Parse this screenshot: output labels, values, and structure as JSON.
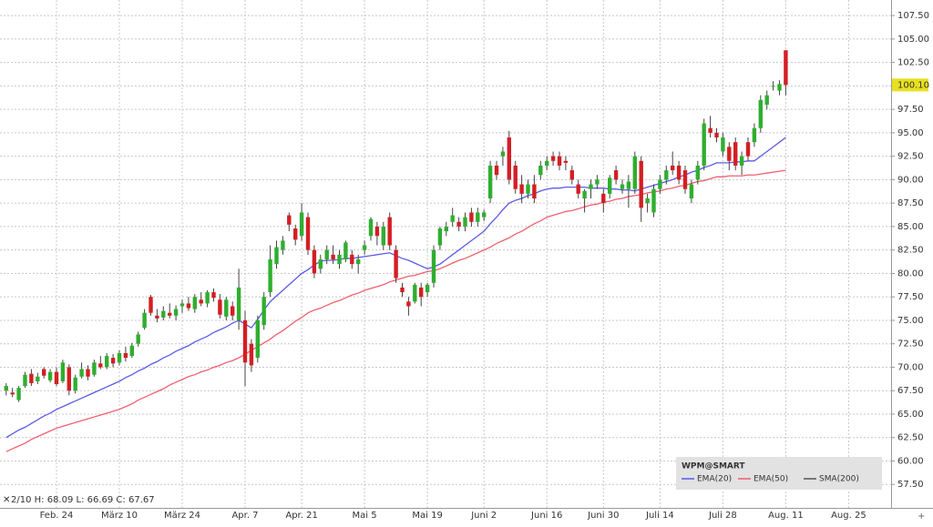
{
  "chart_data": {
    "type": "candlestick",
    "info": "2/10 H: 68.09 L: 66.69 C: 67.67",
    "legend_title": "WPM@SMART",
    "up_color": "#2fae2f",
    "down_color": "#d41e24",
    "categories": [
      null,
      null,
      null,
      null,
      null,
      null,
      null,
      null,
      "Feb. 24",
      null,
      null,
      null,
      null,
      null,
      null,
      null,
      null,
      null,
      "März 10",
      null,
      null,
      null,
      null,
      null,
      null,
      null,
      null,
      null,
      "März 24",
      null,
      null,
      null,
      null,
      null,
      null,
      null,
      null,
      null,
      "Apr. 7",
      null,
      null,
      null,
      null,
      null,
      null,
      null,
      null,
      "Apr. 21",
      null,
      null,
      null,
      null,
      null,
      null,
      null,
      null,
      null,
      "Mai 5",
      null,
      null,
      null,
      null,
      null,
      null,
      null,
      null,
      null,
      "Mai 19",
      null,
      null,
      null,
      null,
      null,
      null,
      null,
      null,
      "Juni 2",
      null,
      null,
      null,
      null,
      null,
      null,
      null,
      null,
      null,
      "Juni 16",
      null,
      null,
      null,
      null,
      null,
      null,
      null,
      null,
      "Juni 30",
      null,
      null,
      null,
      null,
      null,
      null,
      null,
      null,
      "Juli 14",
      null,
      null,
      null,
      null,
      null,
      null,
      null,
      null,
      null,
      "Juli 28",
      null,
      null,
      null,
      null,
      null,
      null,
      null,
      null,
      null,
      "Aug. 11",
      null,
      null,
      null,
      null,
      null,
      null,
      null,
      null,
      null,
      "Aug. 25"
    ],
    "ohlc": [
      [
        67.5,
        68.3,
        67.0,
        68.0
      ],
      [
        67.3,
        67.8,
        66.8,
        67.1
      ],
      [
        66.5,
        68.0,
        66.3,
        67.8
      ],
      [
        68.0,
        69.5,
        67.8,
        69.2
      ],
      [
        69.3,
        69.8,
        68.0,
        68.3
      ],
      [
        68.5,
        69.4,
        68.2,
        69.0
      ],
      [
        69.8,
        70.0,
        68.8,
        69.1
      ],
      [
        68.6,
        69.8,
        68.4,
        69.5
      ],
      [
        69.5,
        70.0,
        68.0,
        68.2
      ],
      [
        68.5,
        70.8,
        68.3,
        70.5
      ],
      [
        70.0,
        70.3,
        67.0,
        67.5
      ],
      [
        67.5,
        69.2,
        67.2,
        68.9
      ],
      [
        69.0,
        70.5,
        68.8,
        69.8
      ],
      [
        69.8,
        70.2,
        68.6,
        69.0
      ],
      [
        69.2,
        70.8,
        69.0,
        70.5
      ],
      [
        70.4,
        71.2,
        69.8,
        70.0
      ],
      [
        70.0,
        71.5,
        69.8,
        71.2
      ],
      [
        71.0,
        71.4,
        70.0,
        70.4
      ],
      [
        70.5,
        71.8,
        70.2,
        71.5
      ],
      [
        71.5,
        72.2,
        70.6,
        71.0
      ],
      [
        71.2,
        72.6,
        71.0,
        72.3
      ],
      [
        72.5,
        73.8,
        72.2,
        73.5
      ],
      [
        74.2,
        76.2,
        74.0,
        75.8
      ],
      [
        77.5,
        77.7,
        75.5,
        75.8
      ],
      [
        75.5,
        76.2,
        74.8,
        75.2
      ],
      [
        75.3,
        76.5,
        75.0,
        76.0
      ],
      [
        75.8,
        76.8,
        75.2,
        75.5
      ],
      [
        75.5,
        76.6,
        75.0,
        76.2
      ],
      [
        76.5,
        77.2,
        75.8,
        76.8
      ],
      [
        76.8,
        77.5,
        76.0,
        76.3
      ],
      [
        76.2,
        77.8,
        75.8,
        77.5
      ],
      [
        77.2,
        78.0,
        76.5,
        76.8
      ],
      [
        76.8,
        78.2,
        76.4,
        78.0
      ],
      [
        78.0,
        78.4,
        77.0,
        77.4
      ],
      [
        77.2,
        77.8,
        75.2,
        75.6
      ],
      [
        75.4,
        77.5,
        75.0,
        77.2
      ],
      [
        76.5,
        77.0,
        75.0,
        75.5
      ],
      [
        75.0,
        80.5,
        74.0,
        78.5
      ],
      [
        75.0,
        76.0,
        68.0,
        70.5
      ],
      [
        72.5,
        73.0,
        69.5,
        70.2
      ],
      [
        71.0,
        75.5,
        70.5,
        75.0
      ],
      [
        74.5,
        78.0,
        74.0,
        77.5
      ],
      [
        78.0,
        83.0,
        77.5,
        81.5
      ],
      [
        81.0,
        83.5,
        80.5,
        82.8
      ],
      [
        82.5,
        84.0,
        82.0,
        83.5
      ],
      [
        86.2,
        86.5,
        84.5,
        85.2
      ],
      [
        84.8,
        85.2,
        83.0,
        83.6
      ],
      [
        84.0,
        87.5,
        83.5,
        86.5
      ],
      [
        86.0,
        86.5,
        82.0,
        82.5
      ],
      [
        82.5,
        83.0,
        79.5,
        80.0
      ],
      [
        80.5,
        82.0,
        80.0,
        81.5
      ],
      [
        81.5,
        83.0,
        81.0,
        82.5
      ],
      [
        82.0,
        83.0,
        81.0,
        81.5
      ],
      [
        81.0,
        82.5,
        80.5,
        82.0
      ],
      [
        81.5,
        83.5,
        81.2,
        83.3
      ],
      [
        82.0,
        82.5,
        80.5,
        81.0
      ],
      [
        81.0,
        82.0,
        80.0,
        81.5
      ],
      [
        82.5,
        83.5,
        82.0,
        83.0
      ],
      [
        84.0,
        86.0,
        83.5,
        85.8
      ],
      [
        85.0,
        85.5,
        83.0,
        84.0
      ],
      [
        83.0,
        85.5,
        82.5,
        85.0
      ],
      [
        86.0,
        86.5,
        82.5,
        83.0
      ],
      [
        82.5,
        83.0,
        79.0,
        79.5
      ],
      [
        78.5,
        79.0,
        77.5,
        78.0
      ],
      [
        77.0,
        77.5,
        75.5,
        76.5
      ],
      [
        77.0,
        79.0,
        76.8,
        78.8
      ],
      [
        78.5,
        79.0,
        76.5,
        77.5
      ],
      [
        78.0,
        79.0,
        77.5,
        78.8
      ],
      [
        79.0,
        83.0,
        78.5,
        82.5
      ],
      [
        83.0,
        85.0,
        82.5,
        84.8
      ],
      [
        84.5,
        85.5,
        84.0,
        85.0
      ],
      [
        85.5,
        87.0,
        85.0,
        86.2
      ],
      [
        85.5,
        86.0,
        84.5,
        85.0
      ],
      [
        85.0,
        86.5,
        84.5,
        86.0
      ],
      [
        86.5,
        87.0,
        85.0,
        85.5
      ],
      [
        85.5,
        87.0,
        85.0,
        86.5
      ],
      [
        86.0,
        86.8,
        85.6,
        86.5
      ],
      [
        88.0,
        92.0,
        87.5,
        91.5
      ],
      [
        91.5,
        92.0,
        90.0,
        90.5
      ],
      [
        92.5,
        93.5,
        91.5,
        93.0
      ],
      [
        94.5,
        95.2,
        89.5,
        90.0
      ],
      [
        91.5,
        92.0,
        88.5,
        89.0
      ],
      [
        89.5,
        90.5,
        87.5,
        88.5
      ],
      [
        88.5,
        90.0,
        88.0,
        89.5
      ],
      [
        89.5,
        90.5,
        87.5,
        88.0
      ],
      [
        90.5,
        92.0,
        90.0,
        91.5
      ],
      [
        91.5,
        92.5,
        91.0,
        92.0
      ],
      [
        92.5,
        93.0,
        91.5,
        92.0
      ],
      [
        92.5,
        93.0,
        91.0,
        91.5
      ],
      [
        92.0,
        92.5,
        91.0,
        91.8
      ],
      [
        91.0,
        91.5,
        89.5,
        90.0
      ],
      [
        89.5,
        90.0,
        88.0,
        88.5
      ],
      [
        88.0,
        89.0,
        86.5,
        88.8
      ],
      [
        89.0,
        90.0,
        88.0,
        89.5
      ],
      [
        89.5,
        90.5,
        89.0,
        90.0
      ],
      [
        88.5,
        89.0,
        86.5,
        87.5
      ],
      [
        88.5,
        90.5,
        88.0,
        90.2
      ],
      [
        91.0,
        91.5,
        89.5,
        90.0
      ],
      [
        89.0,
        90.0,
        88.5,
        89.5
      ],
      [
        89.0,
        90.5,
        87.0,
        89.8
      ],
      [
        89.0,
        93.0,
        88.5,
        92.5
      ],
      [
        92.0,
        92.5,
        85.5,
        87.0
      ],
      [
        87.5,
        88.5,
        86.5,
        88.0
      ],
      [
        86.5,
        89.5,
        86.0,
        89.0
      ],
      [
        89.0,
        90.5,
        88.5,
        90.0
      ],
      [
        90.0,
        91.5,
        89.5,
        91.0
      ],
      [
        91.5,
        93.0,
        90.5,
        91.0
      ],
      [
        91.5,
        92.0,
        89.5,
        90.0
      ],
      [
        91.0,
        91.5,
        88.5,
        89.0
      ],
      [
        88.0,
        90.0,
        87.5,
        89.5
      ],
      [
        90.0,
        92.0,
        89.5,
        91.5
      ],
      [
        91.5,
        96.5,
        91.0,
        96.0
      ],
      [
        95.5,
        96.8,
        94.5,
        95.0
      ],
      [
        95.0,
        95.5,
        94.0,
        94.5
      ],
      [
        93.0,
        95.0,
        92.5,
        94.5
      ],
      [
        93.5,
        94.0,
        91.0,
        92.0
      ],
      [
        94.0,
        94.5,
        91.0,
        91.5
      ],
      [
        91.5,
        93.0,
        90.5,
        92.5
      ],
      [
        94.0,
        94.5,
        92.0,
        92.5
      ],
      [
        94.0,
        96.0,
        93.5,
        95.5
      ],
      [
        95.5,
        99.0,
        95.0,
        98.5
      ],
      [
        98.0,
        99.5,
        97.5,
        99.0
      ],
      [
        100.0,
        100.5,
        99.5,
        100.0
      ],
      [
        99.5,
        100.6,
        99.0,
        100.2
      ],
      [
        103.8,
        103.8,
        99.0,
        100.1
      ],
      null,
      null,
      null,
      null,
      null,
      null,
      null,
      null,
      null,
      null
    ],
    "series": [
      {
        "name": "EMA(20)",
        "color": "#5b5be8",
        "values": [
          62.5,
          62.9,
          63.3,
          63.6,
          64.0,
          64.4,
          64.8,
          65.1,
          65.5,
          65.8,
          66.1,
          66.4,
          66.7,
          67.0,
          67.3,
          67.6,
          67.9,
          68.2,
          68.5,
          68.9,
          69.2,
          69.6,
          69.9,
          70.3,
          70.6,
          71.0,
          71.3,
          71.7,
          72.0,
          72.3,
          72.7,
          73.0,
          73.3,
          73.7,
          74.0,
          74.3,
          74.7,
          75.0,
          74.6,
          74.2,
          75.1,
          76.1,
          77.0,
          77.6,
          78.2,
          78.8,
          79.4,
          80.0,
          80.4,
          80.9,
          81.3,
          81.4,
          81.4,
          81.5,
          81.6,
          81.6,
          81.7,
          81.8,
          81.9,
          82.0,
          82.1,
          82.2,
          81.9,
          81.6,
          81.4,
          81.1,
          80.8,
          80.5,
          80.7,
          81.0,
          81.5,
          82.0,
          82.5,
          83.0,
          83.5,
          84.0,
          84.5,
          85.3,
          86.0,
          86.8,
          87.5,
          87.8,
          88.0,
          88.3,
          88.5,
          88.8,
          89.0,
          89.1,
          89.1,
          89.2,
          89.2,
          89.2,
          89.2,
          89.1,
          89.1,
          89.1,
          89.0,
          89.0,
          88.9,
          88.9,
          88.8,
          89.0,
          89.2,
          89.4,
          89.6,
          89.8,
          90.0,
          90.3,
          90.5,
          90.8,
          91.0,
          91.3,
          91.5,
          91.8,
          91.8,
          91.8,
          91.9,
          91.9,
          92.0,
          92.0,
          92.5,
          93.0,
          93.5,
          94.0,
          94.5,
          null,
          null,
          null,
          null,
          null,
          null,
          null,
          null,
          null,
          null
        ]
      },
      {
        "name": "EMA(50)",
        "color": "#f0606e",
        "values": [
          61.0,
          61.3,
          61.6,
          61.9,
          62.3,
          62.6,
          62.9,
          63.2,
          63.5,
          63.7,
          63.9,
          64.1,
          64.3,
          64.5,
          64.7,
          64.9,
          65.1,
          65.3,
          65.5,
          65.8,
          66.1,
          66.5,
          66.8,
          67.1,
          67.4,
          67.7,
          68.1,
          68.4,
          68.7,
          69.0,
          69.2,
          69.5,
          69.7,
          70.0,
          70.2,
          70.5,
          70.7,
          71.0,
          71.4,
          71.8,
          72.2,
          72.6,
          73.0,
          73.5,
          73.9,
          74.4,
          74.9,
          75.3,
          75.8,
          76.1,
          76.3,
          76.6,
          76.9,
          77.1,
          77.4,
          77.7,
          77.9,
          78.2,
          78.4,
          78.6,
          78.8,
          79.1,
          79.3,
          79.5,
          79.7,
          79.8,
          80.0,
          80.2,
          80.3,
          80.5,
          80.8,
          81.1,
          81.4,
          81.6,
          81.9,
          82.2,
          82.5,
          82.8,
          83.2,
          83.5,
          83.8,
          84.2,
          84.5,
          84.9,
          85.3,
          85.6,
          86.0,
          86.2,
          86.4,
          86.6,
          86.7,
          86.9,
          87.1,
          87.3,
          87.4,
          87.6,
          87.7,
          87.9,
          88.0,
          88.2,
          88.3,
          88.4,
          88.6,
          88.7,
          88.8,
          89.0,
          89.1,
          89.3,
          89.4,
          89.6,
          89.8,
          89.9,
          90.1,
          90.3,
          90.3,
          90.4,
          90.4,
          90.4,
          90.5,
          90.5,
          90.6,
          90.7,
          90.8,
          90.9,
          91.0,
          null,
          null,
          null,
          null,
          null,
          null,
          null,
          null,
          null,
          null
        ]
      },
      {
        "name": "SMA(200)",
        "color": "#555555"
      }
    ],
    "last_price": {
      "value": 100.1,
      "label": "100.10"
    },
    "ylim": [
      55,
      109.16
    ],
    "yticks": [
      {
        "value": 57.5,
        "label": "57.50"
      },
      {
        "value": 60,
        "label": "60.00"
      },
      {
        "value": 62.5,
        "label": "62.50"
      },
      {
        "value": 65,
        "label": "65.00"
      },
      {
        "value": 67.5,
        "label": "67.50"
      },
      {
        "value": 70,
        "label": "70.00"
      },
      {
        "value": 72.5,
        "label": "72.50"
      },
      {
        "value": 75,
        "label": "75.00"
      },
      {
        "value": 77.5,
        "label": "77.50"
      },
      {
        "value": 80,
        "label": "80.00"
      },
      {
        "value": 82.5,
        "label": "82.50"
      },
      {
        "value": 85,
        "label": "85.00"
      },
      {
        "value": 87.5,
        "label": "87.50"
      },
      {
        "value": 90,
        "label": "90.00"
      },
      {
        "value": 92.5,
        "label": "92.50"
      },
      {
        "value": 95,
        "label": "95.00"
      },
      {
        "value": 97.5,
        "label": "97.50"
      },
      {
        "value": 100,
        "label": "100.00"
      },
      {
        "value": 102.5,
        "label": "102.50"
      },
      {
        "value": 105,
        "label": "105.00"
      },
      {
        "value": 107.5,
        "label": "107.50"
      }
    ],
    "grid": true
  }
}
